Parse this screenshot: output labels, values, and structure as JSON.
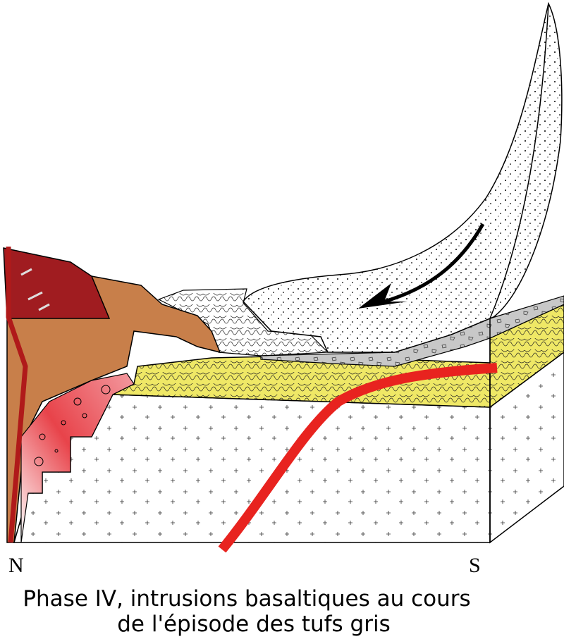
{
  "labels": {
    "north": "N",
    "south": "S"
  },
  "caption": {
    "lines": [
      "Phase IV, intrusions basaltiques au cours",
      "de l'épisode des tufs gris"
    ]
  }
}
